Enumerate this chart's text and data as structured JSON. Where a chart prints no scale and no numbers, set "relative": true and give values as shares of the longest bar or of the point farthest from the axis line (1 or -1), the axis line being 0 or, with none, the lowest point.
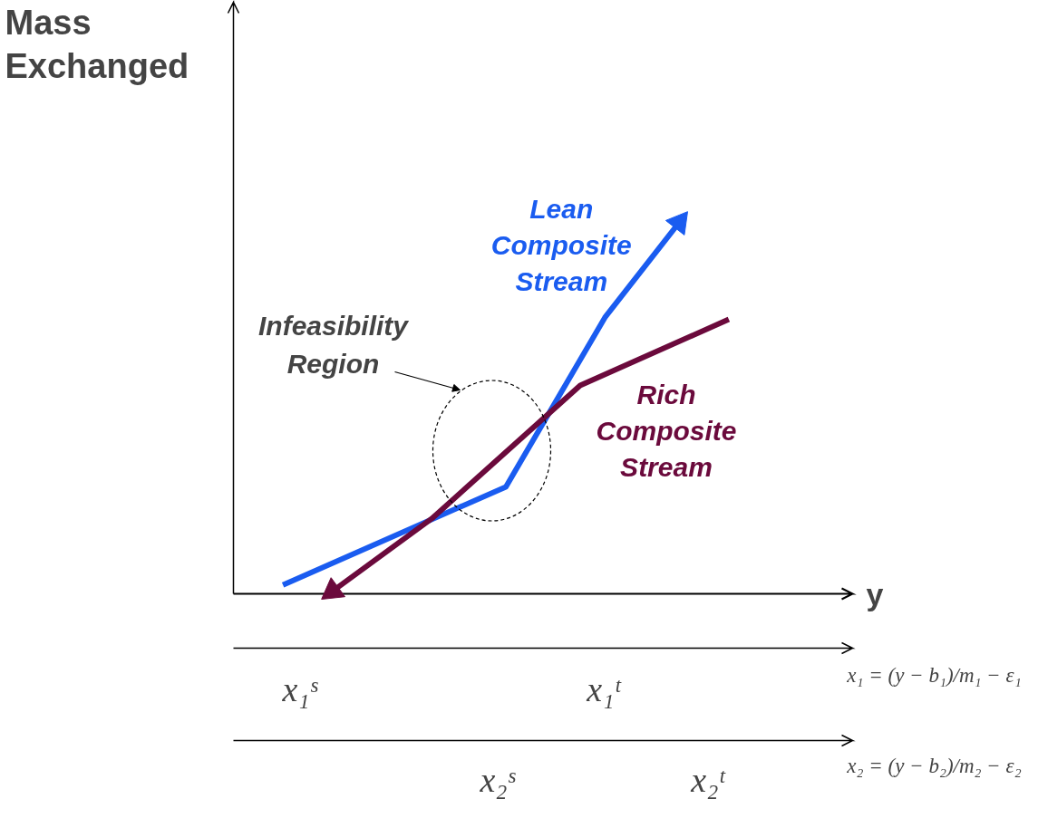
{
  "chart_data": {
    "type": "line",
    "relative": true,
    "xlabel": "y",
    "ylabel": "Mass Exchanged",
    "grid": false,
    "categories": [
      null,
      null,
      null,
      null,
      null,
      null,
      null,
      null,
      null,
      null,
      null,
      null,
      null,
      null,
      null,
      null,
      null,
      null,
      null,
      null,
      null,
      null,
      null,
      null,
      null,
      null
    ],
    "series": [
      {
        "name": "Lean Composite Stream",
        "color": "#1a5cf0",
        "values": [
          null,
          null,
          0.024,
          null,
          null,
          null,
          null,
          null,
          null,
          null,
          null,
          0.288,
          null,
          null,
          null,
          0.744,
          null,
          null,
          1,
          null,
          null,
          null,
          null,
          null,
          null,
          null
        ]
      },
      {
        "name": "Rich Composite Stream",
        "color": "#6b0a3c",
        "values": [
          null,
          null,
          null,
          null,
          0.007,
          null,
          null,
          null,
          0.202,
          null,
          null,
          null,
          null,
          null,
          0.561,
          null,
          null,
          null,
          null,
          null,
          0.739,
          null,
          null,
          null,
          null,
          null
        ]
      }
    ],
    "annotations": [
      "Infeasibility Region",
      "x₁ˢ",
      "x₁ᵗ",
      "x₂ˢ",
      "x₂ᵗ",
      "x₁ = (y − b₁)/m₁ − ε₁",
      "x₂ = (y − b₂)/m₂ − ε₂"
    ]
  }
}
